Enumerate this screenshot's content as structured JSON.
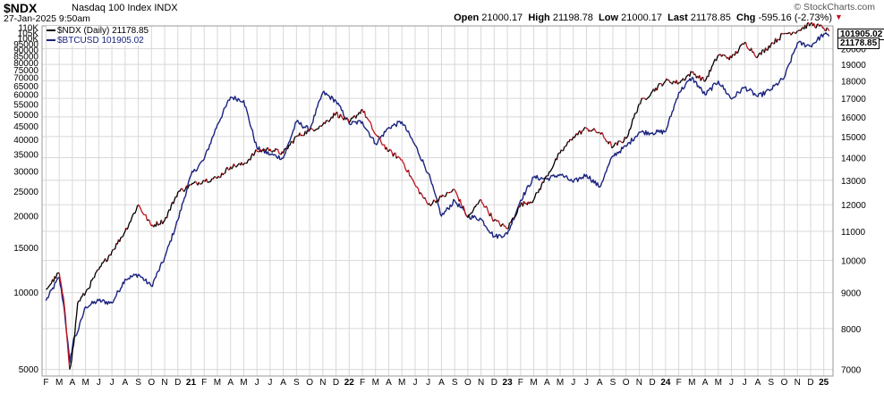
{
  "header": {
    "symbol": "$NDX",
    "name": "Nasdaq 100 Index  INDX",
    "date": "27-Jan-2025 9:50am",
    "brand": "© StockCharts.com",
    "open_label": "Open",
    "open": "21000.17",
    "high_label": "High",
    "high": "21198.78",
    "low_label": "Low",
    "low": "21000.17",
    "last_label": "Last",
    "last": "21178.85",
    "chg_label": "Chg",
    "chg": "-595.16 (-2.73%)",
    "chg_arrow": "▼"
  },
  "legend": {
    "series1": "$NDX (Daily) 21178.85",
    "series2": "$BTCUSD 101905.02"
  },
  "last_labels": {
    "btc": "101905.02",
    "ndx": "21178.85"
  },
  "colors": {
    "ndx_up": "#000000",
    "ndx_down": "#c0141c",
    "btc": "#1a237e",
    "grid": "#d8d8d8"
  },
  "chart_data": {
    "type": "line",
    "scale": "log",
    "grid": true,
    "legend_position": "top-left",
    "x_ticks": [
      "F",
      "M",
      "A",
      "M",
      "J",
      "J",
      "A",
      "S",
      "O",
      "N",
      "D",
      "21",
      "F",
      "M",
      "A",
      "M",
      "J",
      "J",
      "A",
      "S",
      "O",
      "N",
      "D",
      "22",
      "F",
      "M",
      "A",
      "M",
      "J",
      "J",
      "A",
      "S",
      "O",
      "N",
      "D",
      "23",
      "F",
      "M",
      "A",
      "M",
      "J",
      "J",
      "A",
      "S",
      "O",
      "N",
      "D",
      "24",
      "F",
      "M",
      "A",
      "M",
      "J",
      "J",
      "A",
      "S",
      "O",
      "N",
      "D",
      "25"
    ],
    "y_left_ticks": [
      5000,
      10000,
      15000,
      20000,
      25000,
      30000,
      35000,
      40000,
      45000,
      50000,
      55000,
      60000,
      65000,
      70000,
      75000,
      80000,
      85000,
      90000,
      95000,
      100000,
      105000,
      110000
    ],
    "y_left_labels": [
      "5000",
      "10000",
      "15000",
      "20000",
      "25000",
      "30000",
      "35000",
      "40000",
      "45000",
      "50000",
      "55000",
      "60000",
      "65000",
      "70000",
      "75000",
      "80000",
      "85000",
      "90000",
      "95000",
      "100K",
      "105K",
      "110K"
    ],
    "y_right_ticks": [
      7000,
      8000,
      9000,
      10000,
      11000,
      12000,
      13000,
      14000,
      15000,
      16000,
      17000,
      18000,
      19000,
      20000
    ],
    "series": [
      {
        "name": "$NDX (Daily) 21178.85",
        "axis": "right",
        "x": [
          0,
          1,
          1.4,
          1.8,
          2.1,
          2.4,
          3,
          4,
          5,
          6,
          7,
          8,
          9,
          10,
          11,
          12,
          13,
          14,
          15,
          16,
          17,
          18,
          19,
          20,
          21,
          22,
          23,
          24,
          25,
          26,
          27,
          28,
          29,
          30,
          31,
          32,
          33,
          34,
          35,
          36,
          37,
          38,
          39,
          40,
          41,
          42,
          43,
          44,
          45,
          46,
          47,
          48,
          49,
          50,
          51,
          52,
          53,
          54,
          55,
          56,
          57,
          58,
          59,
          59.4
        ],
        "values": [
          9100,
          9600,
          8600,
          7000,
          7600,
          8700,
          9000,
          9700,
          10300,
          11000,
          12000,
          11200,
          11400,
          12500,
          12800,
          13000,
          13100,
          13600,
          13700,
          14300,
          14400,
          14200,
          15000,
          15300,
          15600,
          16200,
          15700,
          16400,
          15100,
          14300,
          13900,
          12800,
          12000,
          12300,
          12600,
          11500,
          12200,
          11400,
          11100,
          12000,
          12200,
          13200,
          14200,
          15000,
          15400,
          15200,
          14500,
          14900,
          16700,
          17400,
          18000,
          17900,
          18500,
          18000,
          19600,
          19400,
          20400,
          19500,
          20300,
          21000,
          21200,
          21700,
          21400,
          21178.85
        ]
      },
      {
        "name": "$BTCUSD 101905.02",
        "axis": "left",
        "x": [
          0,
          1,
          1.4,
          1.8,
          2.1,
          2.4,
          3,
          4,
          5,
          6,
          7,
          8,
          9,
          10,
          11,
          12,
          13,
          14,
          15,
          16,
          17,
          18,
          19,
          20,
          21,
          22,
          23,
          24,
          25,
          26,
          27,
          28,
          29,
          30,
          31,
          32,
          33,
          34,
          35,
          36,
          37,
          38,
          39,
          40,
          41,
          42,
          43,
          44,
          45,
          46,
          47,
          48,
          49,
          50,
          51,
          52,
          53,
          54,
          55,
          56,
          57,
          58,
          59,
          59.4
        ],
        "values": [
          9300,
          11500,
          8500,
          5300,
          6600,
          7000,
          8800,
          9300,
          9100,
          11300,
          11800,
          10600,
          13700,
          19300,
          29000,
          33500,
          45800,
          58800,
          57000,
          37000,
          35000,
          33800,
          47000,
          43700,
          61300,
          56700,
          46200,
          47000,
          38500,
          44600,
          47000,
          38000,
          29500,
          20000,
          23000,
          20000,
          19500,
          16600,
          17000,
          23100,
          28400,
          28000,
          29200,
          27200,
          29100,
          26000,
          34500,
          37600,
          42800,
          42600,
          43000,
          61200,
          70000,
          60000,
          67900,
          57800,
          64300,
          59000,
          63000,
          70000,
          96000,
          93500,
          104000,
          101905.02
        ]
      }
    ]
  }
}
